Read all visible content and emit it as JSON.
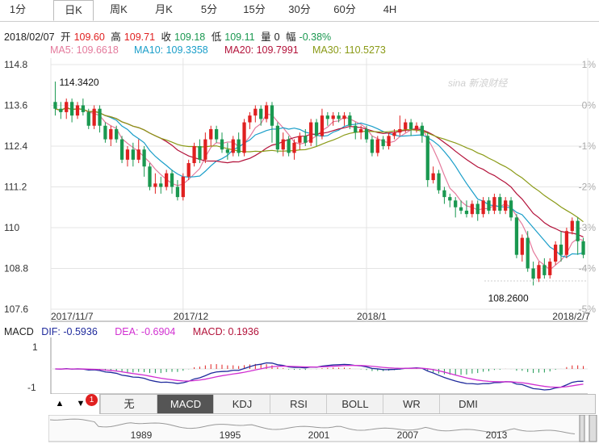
{
  "tabs": [
    "1分",
    "日K",
    "周K",
    "月K",
    "5分",
    "15分",
    "30分",
    "60分",
    "4H"
  ],
  "active_tab": "日K",
  "info": {
    "date": "2018/02/07",
    "open_label": "开",
    "open": "109.60",
    "high_label": "高",
    "high": "109.71",
    "close_label": "收",
    "close": "109.18",
    "low_label": "低",
    "low": "109.11",
    "vol_label": "量",
    "vol": "0",
    "chg_label": "幅",
    "chg": "-0.38%"
  },
  "ma": {
    "ma5": "MA5: 109.6618",
    "ma10": "MA10: 109.3358",
    "ma20": "MA20: 109.7991",
    "ma30": "MA30: 110.5273"
  },
  "colors": {
    "up": "#e02020",
    "down": "#1a9850",
    "ma5": "#e47a9c",
    "ma10": "#1a9ec9",
    "ma20": "#b3123a",
    "ma30": "#8a9a16",
    "dif": "#1f2a9c",
    "dea": "#d12fd1",
    "grid": "#e4e4e4"
  },
  "watermark": "sina 新浪财经",
  "chart_data": {
    "type": "candlestick",
    "y_ticks": [
      "114.8",
      "113.6",
      "112.4",
      "111.2",
      "110",
      "108.8",
      "107.6"
    ],
    "pct_ticks": [
      "1%",
      "0%",
      "-1%",
      "-2%",
      "-3%",
      "-4%",
      "-5%"
    ],
    "x_labels": [
      "2017/11/7",
      "2017/12",
      "2018/1",
      "2018/2/7"
    ],
    "ylim": [
      107.6,
      114.8
    ],
    "max_label": "114.3420",
    "min_label": "108.2600",
    "candles": [
      [
        113.7,
        113.5,
        114.3,
        113.3
      ],
      [
        113.5,
        113.4,
        113.7,
        113.2
      ],
      [
        113.4,
        113.7,
        113.8,
        113.2
      ],
      [
        113.7,
        113.3,
        113.8,
        113.1
      ],
      [
        113.3,
        113.6,
        113.7,
        113.2
      ],
      [
        113.6,
        113.4,
        113.8,
        113.3
      ],
      [
        113.4,
        113.0,
        113.5,
        112.9
      ],
      [
        113.0,
        113.5,
        113.6,
        112.9
      ],
      [
        113.5,
        113.0,
        113.6,
        112.8
      ],
      [
        113.0,
        112.6,
        113.1,
        112.5
      ],
      [
        112.6,
        112.9,
        113.0,
        112.4
      ],
      [
        112.9,
        112.6,
        113.0,
        112.5
      ],
      [
        112.6,
        112.0,
        112.7,
        111.9
      ],
      [
        112.0,
        112.3,
        112.4,
        111.8
      ],
      [
        112.3,
        112.0,
        112.5,
        111.8
      ],
      [
        112.0,
        112.3,
        112.6,
        111.9
      ],
      [
        112.3,
        111.8,
        112.4,
        111.5
      ],
      [
        111.8,
        111.2,
        111.9,
        111.1
      ],
      [
        111.2,
        111.3,
        111.6,
        111.0
      ],
      [
        111.3,
        111.2,
        111.5,
        111.0
      ],
      [
        111.2,
        111.6,
        111.7,
        111.1
      ],
      [
        111.6,
        111.2,
        111.7,
        111.0
      ],
      [
        111.2,
        110.9,
        111.4,
        110.8
      ],
      [
        110.9,
        111.5,
        111.6,
        110.8
      ],
      [
        111.5,
        111.9,
        112.0,
        111.4
      ],
      [
        111.9,
        112.4,
        112.5,
        111.8
      ],
      [
        112.4,
        112.0,
        112.6,
        111.9
      ],
      [
        112.0,
        112.6,
        112.8,
        111.9
      ],
      [
        112.6,
        112.9,
        113.0,
        112.4
      ],
      [
        112.9,
        112.6,
        113.0,
        112.5
      ],
      [
        112.6,
        112.3,
        112.8,
        112.2
      ],
      [
        112.3,
        112.2,
        112.5,
        112.0
      ],
      [
        112.2,
        112.6,
        112.7,
        112.1
      ],
      [
        112.6,
        112.2,
        112.8,
        112.1
      ],
      [
        112.2,
        113.1,
        113.2,
        112.1
      ],
      [
        113.1,
        113.3,
        113.4,
        112.9
      ],
      [
        113.3,
        113.5,
        113.6,
        113.1
      ],
      [
        113.5,
        113.2,
        113.6,
        113.0
      ],
      [
        113.2,
        113.6,
        113.7,
        113.1
      ],
      [
        113.6,
        113.0,
        113.7,
        112.5
      ],
      [
        113.0,
        112.3,
        113.1,
        112.2
      ],
      [
        112.3,
        112.6,
        112.8,
        112.1
      ],
      [
        112.6,
        112.2,
        112.7,
        112.1
      ],
      [
        112.2,
        112.5,
        112.6,
        112.0
      ],
      [
        112.5,
        112.7,
        112.8,
        112.3
      ],
      [
        112.7,
        112.5,
        112.9,
        112.4
      ],
      [
        112.5,
        113.1,
        113.2,
        112.4
      ],
      [
        113.1,
        112.7,
        113.2,
        112.4
      ],
      [
        112.7,
        113.3,
        113.5,
        112.6
      ],
      [
        113.3,
        113.2,
        113.4,
        113.0
      ],
      [
        113.2,
        113.3,
        113.4,
        113.0
      ],
      [
        113.3,
        113.2,
        113.4,
        113.1
      ],
      [
        113.2,
        113.3,
        113.4,
        113.0
      ],
      [
        113.3,
        113.0,
        113.4,
        112.9
      ],
      [
        113.0,
        112.8,
        113.1,
        112.6
      ],
      [
        112.8,
        112.9,
        113.0,
        112.6
      ],
      [
        112.9,
        112.6,
        113.0,
        112.5
      ],
      [
        112.6,
        112.2,
        112.7,
        112.1
      ],
      [
        112.2,
        112.6,
        112.7,
        112.1
      ],
      [
        112.6,
        112.4,
        112.7,
        112.3
      ],
      [
        112.4,
        112.7,
        112.8,
        112.3
      ],
      [
        112.7,
        112.8,
        112.9,
        112.6
      ],
      [
        112.8,
        112.9,
        113.3,
        112.7
      ],
      [
        112.9,
        113.1,
        113.2,
        112.8
      ],
      [
        113.1,
        112.9,
        113.2,
        112.7
      ],
      [
        112.9,
        113.0,
        113.1,
        112.8
      ],
      [
        113.0,
        112.7,
        113.1,
        112.5
      ],
      [
        112.7,
        111.4,
        112.8,
        111.2
      ],
      [
        111.4,
        111.6,
        111.8,
        111.3
      ],
      [
        111.6,
        111.1,
        111.7,
        111.0
      ],
      [
        111.1,
        110.9,
        111.2,
        110.7
      ],
      [
        110.9,
        110.8,
        111.0,
        110.6
      ],
      [
        110.8,
        110.6,
        110.9,
        110.3
      ],
      [
        110.6,
        110.5,
        110.8,
        110.4
      ],
      [
        110.5,
        110.4,
        110.8,
        110.3
      ],
      [
        110.4,
        110.7,
        110.8,
        110.3
      ],
      [
        110.7,
        110.4,
        110.8,
        110.2
      ],
      [
        110.4,
        110.8,
        110.9,
        110.3
      ],
      [
        110.8,
        110.5,
        110.9,
        110.4
      ],
      [
        110.5,
        110.9,
        111.0,
        110.4
      ],
      [
        110.9,
        110.5,
        111.0,
        110.4
      ],
      [
        110.5,
        110.8,
        110.9,
        110.4
      ],
      [
        110.8,
        110.3,
        110.9,
        110.2
      ],
      [
        110.3,
        109.2,
        110.4,
        109.1
      ],
      [
        109.2,
        109.7,
        109.8,
        109.0
      ],
      [
        109.7,
        108.8,
        109.9,
        108.7
      ],
      [
        108.8,
        108.5,
        109.0,
        108.3
      ],
      [
        108.5,
        108.9,
        109.0,
        108.4
      ],
      [
        108.9,
        108.6,
        109.1,
        108.5
      ],
      [
        108.6,
        109.0,
        109.1,
        108.5
      ],
      [
        109.0,
        109.5,
        109.6,
        108.9
      ],
      [
        109.5,
        109.2,
        109.9,
        109.0
      ],
      [
        109.2,
        109.9,
        110.0,
        109.1
      ],
      [
        109.9,
        110.2,
        110.3,
        109.8
      ],
      [
        110.2,
        109.6,
        110.3,
        109.2
      ],
      [
        109.6,
        109.2,
        109.7,
        109.1
      ]
    ]
  },
  "macd": {
    "label": "MACD",
    "dif": "DIF: -0.5936",
    "dea": "DEA: -0.6904",
    "macd": "MACD: 0.1936",
    "y_ticks": [
      "1",
      "-1"
    ]
  },
  "controls": {
    "buttons": [
      "无",
      "MACD",
      "KDJ",
      "RSI",
      "BOLL",
      "WR",
      "DMI"
    ],
    "active": "MACD",
    "up_arrow": "▲",
    "down_arrow": "▼",
    "badge": "1"
  },
  "navigator": {
    "years": [
      "1989",
      "1995",
      "2001",
      "2007",
      "2013"
    ]
  }
}
